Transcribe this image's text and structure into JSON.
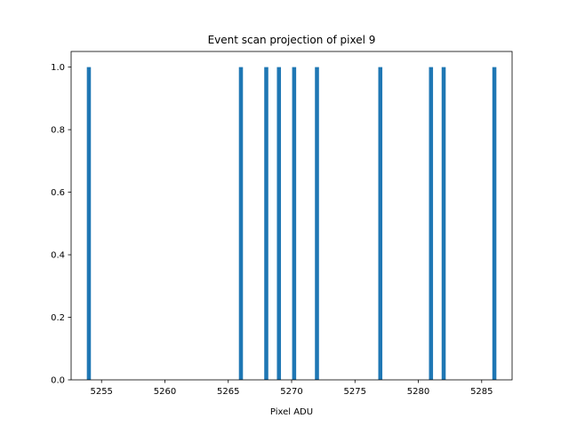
{
  "chart_data": {
    "type": "bar",
    "title": "Event scan projection of pixel 9",
    "xlabel": "Pixel ADU",
    "ylabel": "",
    "x": [
      5254,
      5266,
      5268,
      5269,
      5270.2,
      5272,
      5277,
      5281,
      5282,
      5286
    ],
    "values": [
      1,
      1,
      1,
      1,
      1,
      1,
      1,
      1,
      1,
      1
    ],
    "xlim": [
      5252.6,
      5287.4
    ],
    "ylim": [
      0,
      1.05
    ],
    "xticks": [
      5255,
      5260,
      5265,
      5270,
      5275,
      5280,
      5285
    ],
    "yticks": [
      0.0,
      0.2,
      0.4,
      0.6,
      0.8,
      1.0
    ],
    "bar_width": 0.32,
    "bar_color": "#1f77b4",
    "grid": false
  }
}
